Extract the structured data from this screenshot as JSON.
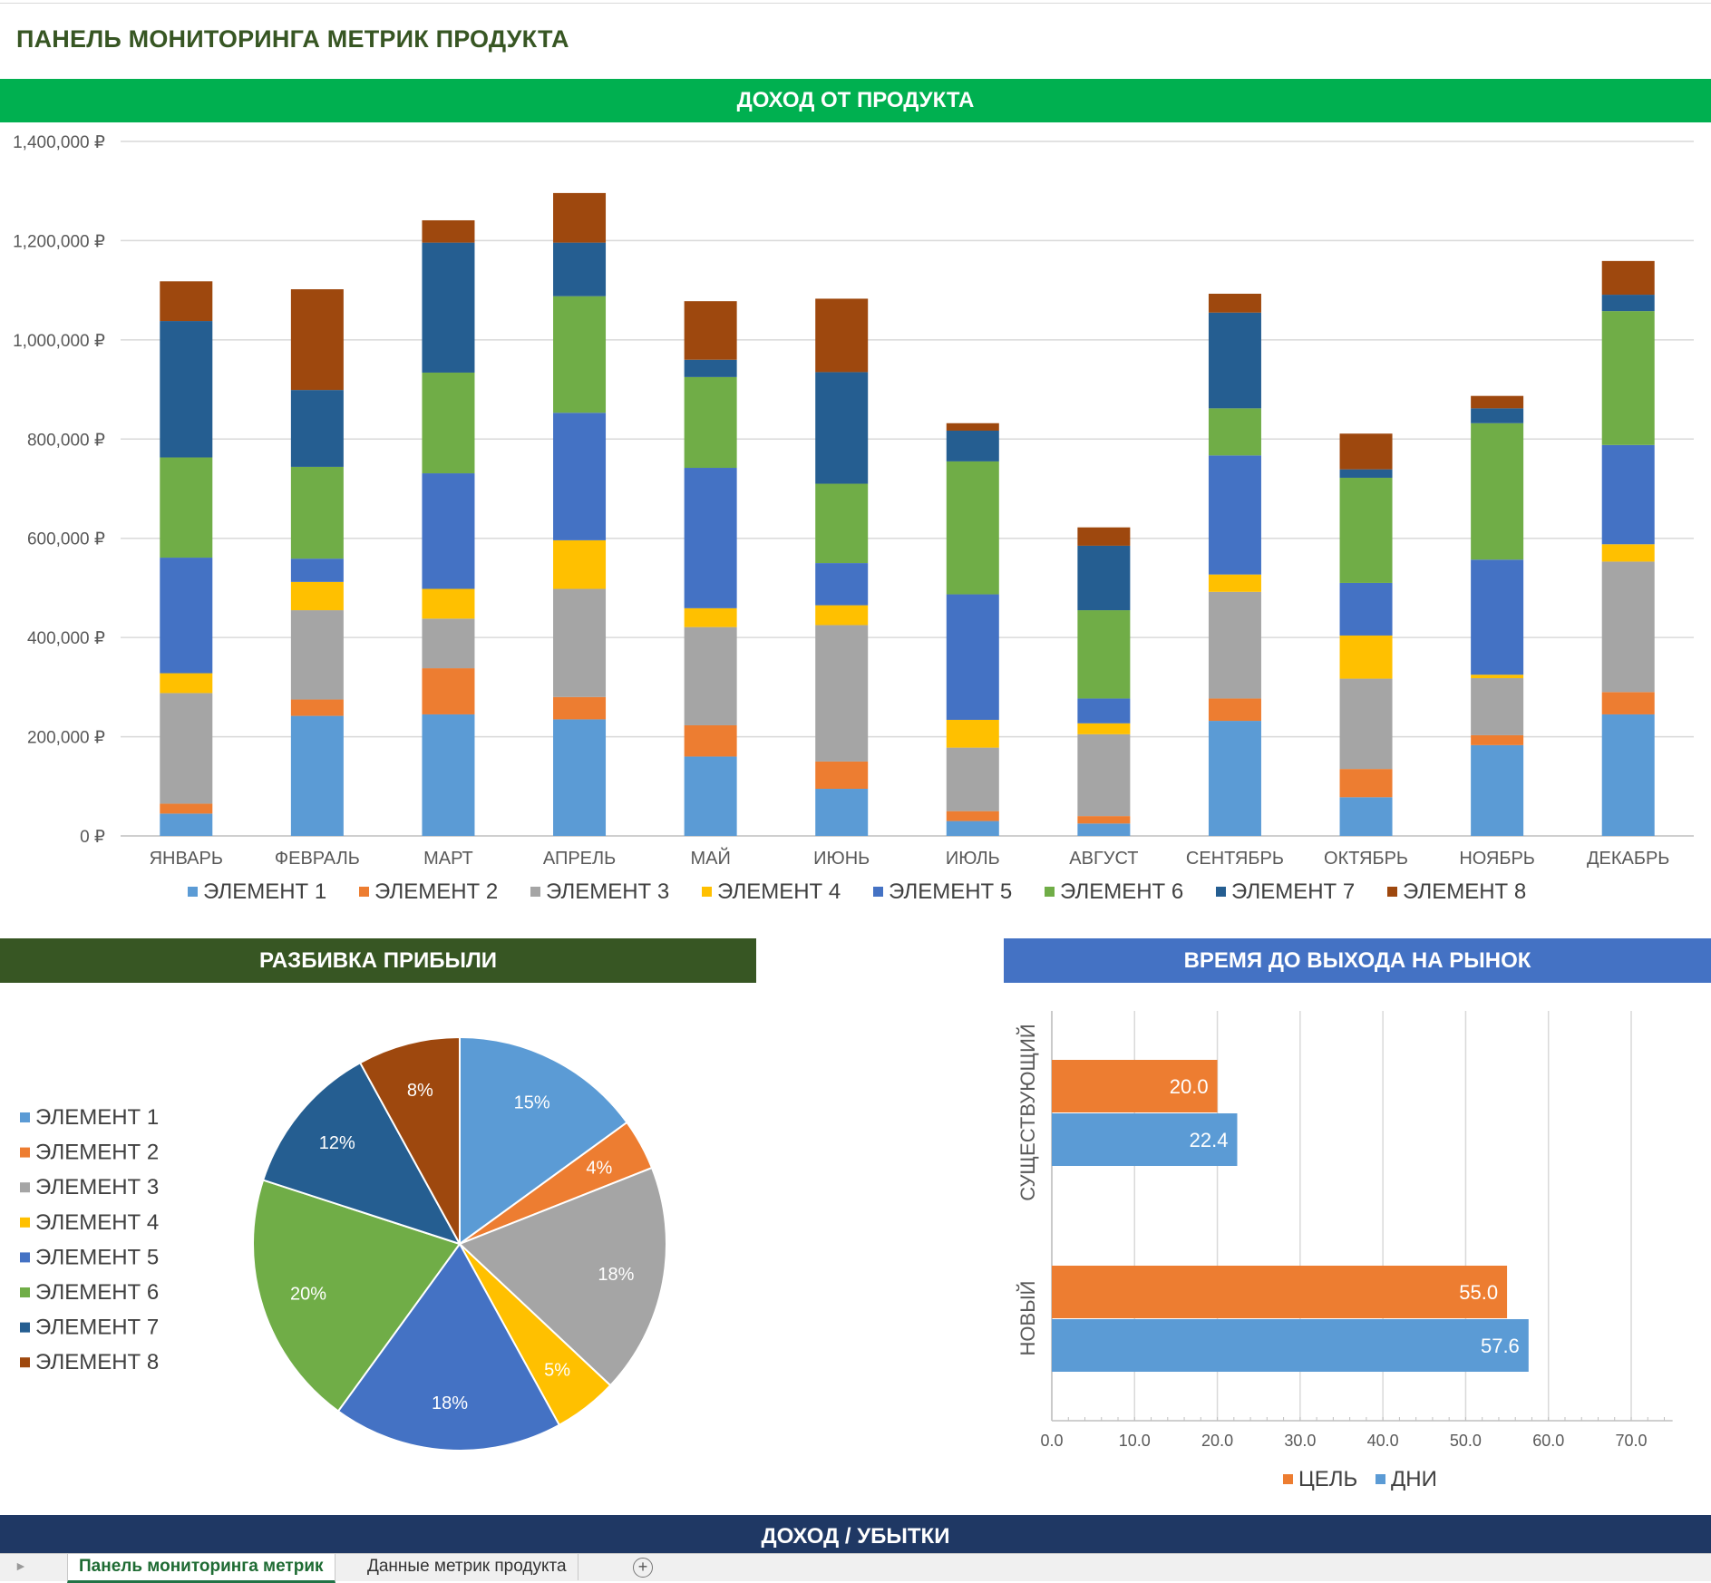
{
  "page_title": "ПАНЕЛЬ МОНИТОРИНГА МЕТРИК ПРОДУКТА",
  "bands": {
    "revenue": "ДОХОД ОТ ПРОДУКТА",
    "profit": "РАЗБИВКА ПРИБЫЛИ",
    "ttm": "ВРЕМЯ ДО ВЫХОДА НА РЫНОК",
    "pl": "ДОХОД / УБЫТКИ"
  },
  "tabs": {
    "active": "Панель мониторинга метрик",
    "data": "Данные метрик продукта",
    "add_icon": "+"
  },
  "colors": [
    "#5b9bd5",
    "#ed7d31",
    "#a5a5a5",
    "#ffc000",
    "#4472c4",
    "#70ad47",
    "#255e91",
    "#9e480e"
  ],
  "chart_data": [
    {
      "type": "bar",
      "stacked": true,
      "categories": [
        "ЯНВАРЬ",
        "ФЕВРАЛЬ",
        "МАРТ",
        "АПРЕЛЬ",
        "МАЙ",
        "ИЮНЬ",
        "ИЮЛЬ",
        "АВГУСТ",
        "СЕНТЯБРЬ",
        "ОКТЯБРЬ",
        "НОЯБРЬ",
        "ДЕКАБРЬ"
      ],
      "ylim": [
        0,
        1400000
      ],
      "yticks": [
        "0 ₽",
        "200,000 ₽",
        "400,000 ₽",
        "600,000 ₽",
        "800,000 ₽",
        "1,000,000 ₽",
        "1,200,000 ₽",
        "1,400,000 ₽"
      ],
      "grid": true,
      "legend_position": "bottom",
      "series": [
        {
          "name": "ЭЛЕМЕНТ 1",
          "values": [
            45000,
            242000,
            245000,
            235000,
            160000,
            95000,
            30000,
            25000,
            232000,
            78000,
            183000,
            245000
          ]
        },
        {
          "name": "ЭЛЕМЕНТ 2",
          "values": [
            20000,
            33000,
            93000,
            45000,
            63000,
            55000,
            20000,
            15000,
            45000,
            57000,
            20000,
            45000
          ]
        },
        {
          "name": "ЭЛЕМЕНТ 3",
          "values": [
            223000,
            180000,
            100000,
            218000,
            198000,
            275000,
            128000,
            165000,
            215000,
            182000,
            115000,
            263000
          ]
        },
        {
          "name": "ЭЛЕМЕНТ 4",
          "values": [
            40000,
            57000,
            60000,
            98000,
            38000,
            40000,
            56000,
            22000,
            35000,
            87000,
            7000,
            35000
          ]
        },
        {
          "name": "ЭЛЕМЕНТ 5",
          "values": [
            233000,
            47000,
            233000,
            257000,
            283000,
            85000,
            253000,
            50000,
            240000,
            106000,
            232000,
            200000
          ]
        },
        {
          "name": "ЭЛЕМЕНТ 6",
          "values": [
            202000,
            185000,
            203000,
            235000,
            183000,
            160000,
            268000,
            178000,
            95000,
            212000,
            275000,
            270000
          ]
        },
        {
          "name": "ЭЛЕМЕНТ 7",
          "values": [
            275000,
            155000,
            262000,
            108000,
            35000,
            225000,
            62000,
            130000,
            193000,
            17000,
            30000,
            33000
          ]
        },
        {
          "name": "ЭЛЕМЕНТ 8",
          "values": [
            80000,
            203000,
            45000,
            100000,
            118000,
            148000,
            15000,
            37000,
            38000,
            72000,
            25000,
            68000
          ]
        }
      ]
    },
    {
      "type": "pie",
      "labels": [
        "ЭЛЕМЕНТ 1",
        "ЭЛЕМЕНТ 2",
        "ЭЛЕМЕНТ 3",
        "ЭЛЕМЕНТ 4",
        "ЭЛЕМЕНТ 5",
        "ЭЛЕМЕНТ 6",
        "ЭЛЕМЕНТ 7",
        "ЭЛЕМЕНТ 8"
      ],
      "values": [
        15,
        4,
        18,
        5,
        18,
        20,
        12,
        8
      ],
      "data_labels": [
        "15%",
        "4%",
        "18%",
        "5%",
        "18%",
        "20%",
        "12%",
        "8%"
      ],
      "legend_position": "left"
    },
    {
      "type": "bar",
      "orientation": "horizontal",
      "categories": [
        "СУЩЕСТВУЮЩИЙ",
        "НОВЫЙ"
      ],
      "series": [
        {
          "name": "ЦЕЛЬ",
          "values": [
            20.0,
            55.0
          ],
          "labels": [
            "20.0",
            "55.0"
          ]
        },
        {
          "name": "ДНИ",
          "values": [
            22.4,
            57.6
          ],
          "labels": [
            "22.4",
            "57.6"
          ]
        }
      ],
      "xlim": [
        0,
        75
      ],
      "xticks": [
        "0.0",
        "10.0",
        "20.0",
        "30.0",
        "40.0",
        "50.0",
        "60.0",
        "70.0"
      ],
      "grid": true,
      "legend_position": "bottom"
    }
  ]
}
